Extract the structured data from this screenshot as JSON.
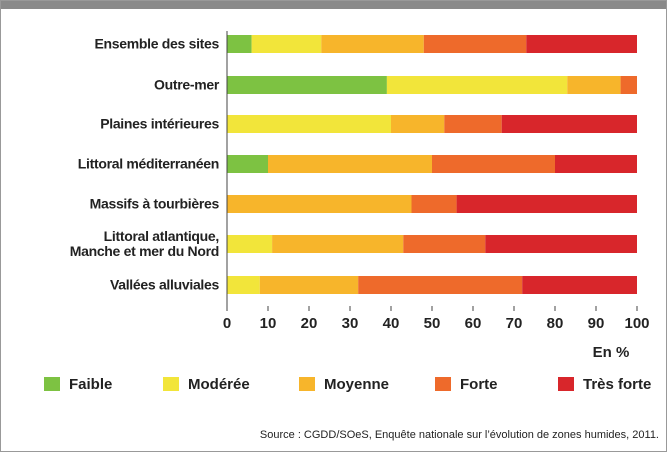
{
  "chart_data": {
    "type": "stacked_bar_horizontal",
    "categories": [
      "Ensemble des sites",
      "Outre-mer",
      "Plaines intérieures",
      "Littoral méditerranéen",
      "Massifs à tourbières",
      "Littoral atlantique,\nManche et mer du Nord",
      "Vallées alluviales"
    ],
    "series": [
      {
        "name": "Faible",
        "color": "#7dc242",
        "values": [
          6,
          39,
          0,
          10,
          0,
          0,
          0
        ]
      },
      {
        "name": "Modérée",
        "color": "#f2e53a",
        "values": [
          17,
          44,
          40,
          0,
          0,
          11,
          8
        ]
      },
      {
        "name": "Moyenne",
        "color": "#f7b52b",
        "values": [
          25,
          13,
          13,
          40,
          45,
          32,
          24
        ]
      },
      {
        "name": "Forte",
        "color": "#ee6a2b",
        "values": [
          25,
          4,
          14,
          30,
          11,
          20,
          40
        ]
      },
      {
        "name": "Très forte",
        "color": "#d8262b",
        "values": [
          27,
          0,
          33,
          20,
          44,
          37,
          28
        ]
      }
    ],
    "xlim": [
      0,
      100
    ],
    "xticks": [
      0,
      10,
      20,
      30,
      40,
      50,
      60,
      70,
      80,
      90,
      100
    ],
    "xlabel": "En %",
    "source": "Source : CGDD/SOeS, Enquête nationale sur l’évolution de zones humides, 2011."
  }
}
